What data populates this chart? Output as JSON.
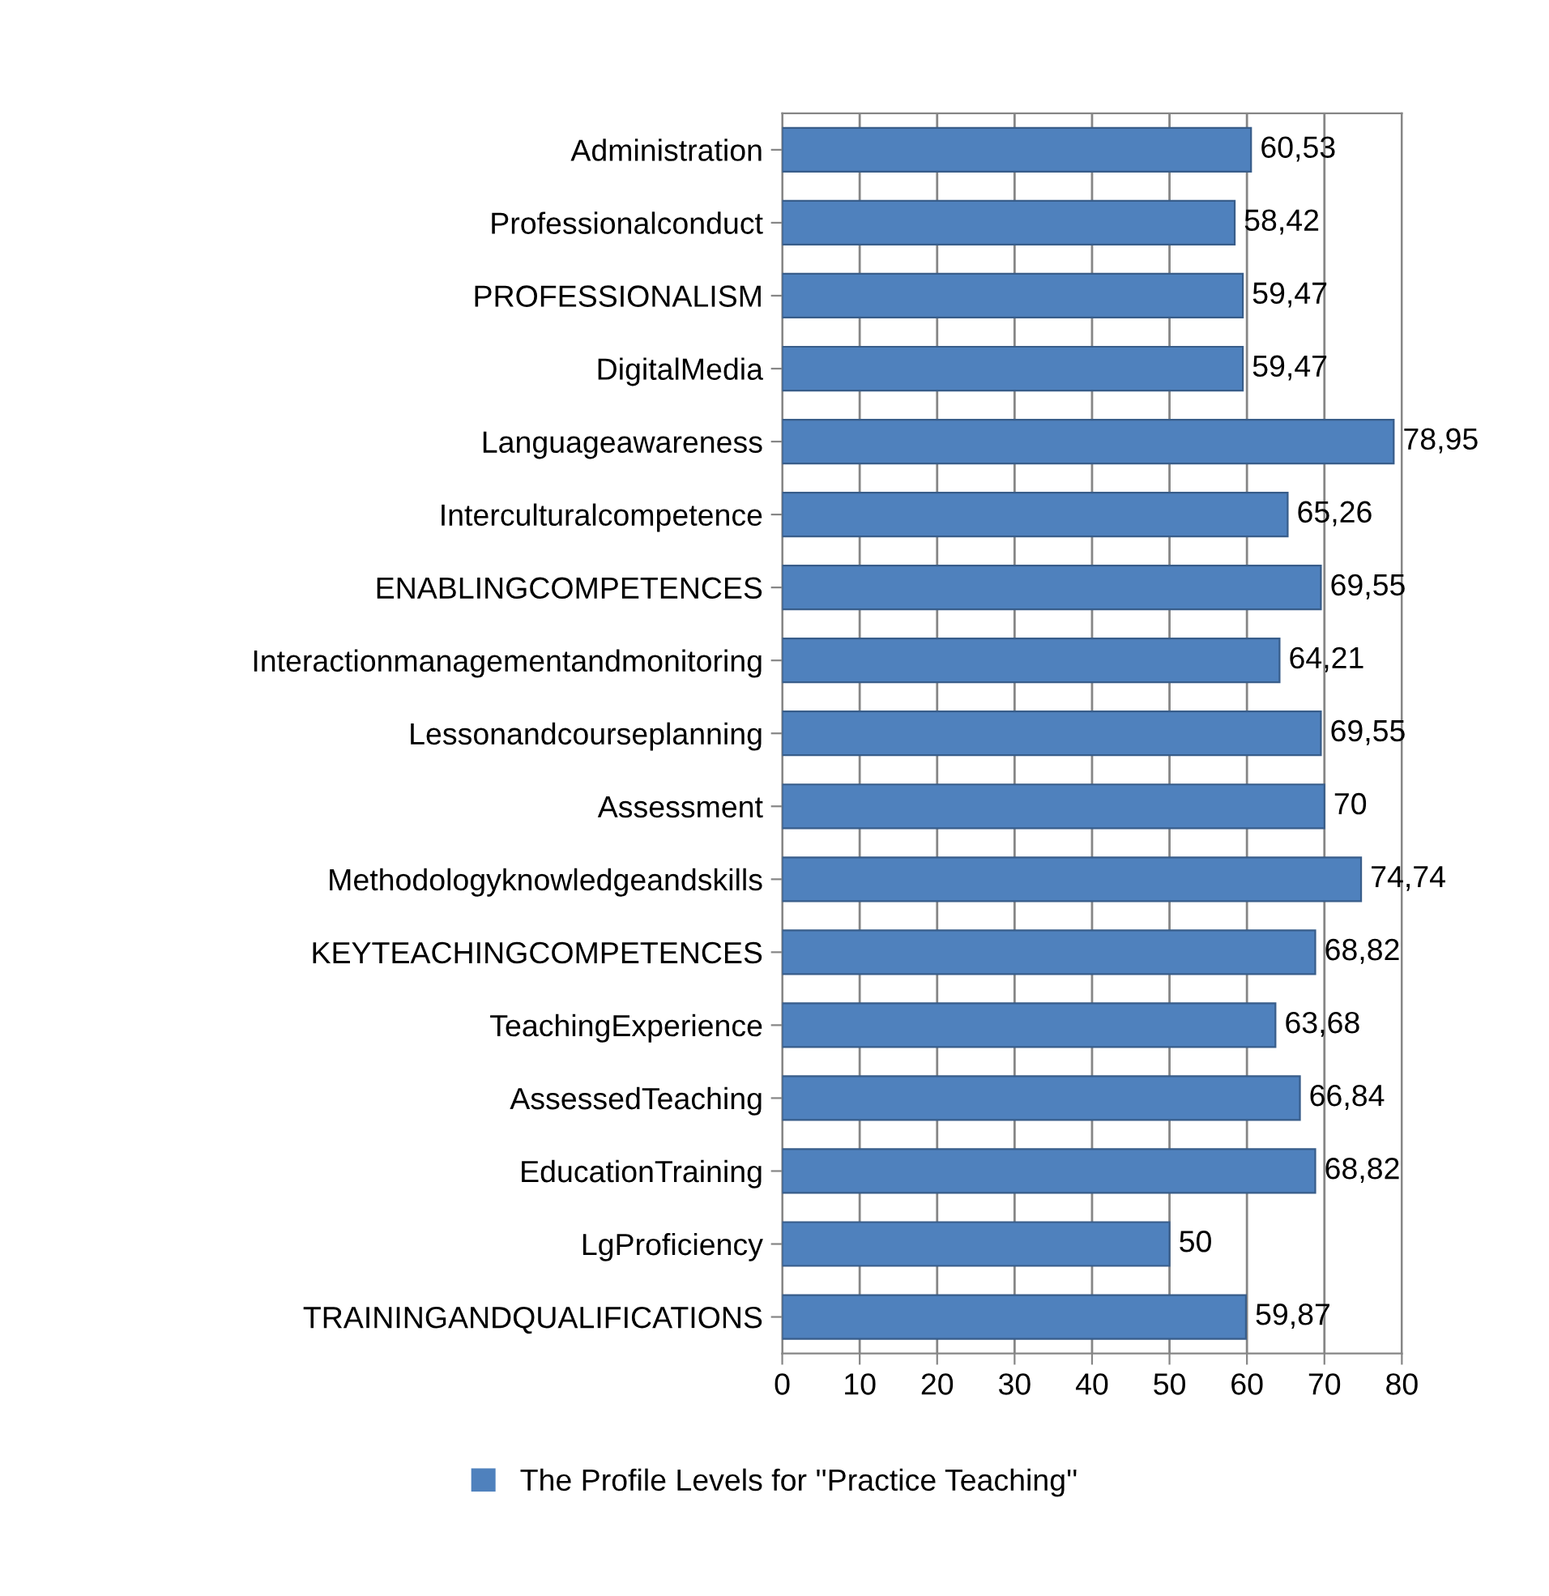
{
  "chart_data": {
    "type": "bar",
    "orientation": "horizontal",
    "categories": [
      "Administration",
      "Professionalconduct",
      "PROFESSIONALISM",
      "DigitalMedia",
      "Languageawareness",
      "Interculturalcompetence",
      "ENABLINGCOMPETENCES",
      "Interactionmanagementandmonitoring",
      "Lessonandcourseplanning",
      "Assessment",
      "Methodologyknowledgeandskills",
      "KEYTEACHINGCOMPETENCES",
      "TeachingExperience",
      "AssessedTeaching",
      "EducationTraining",
      "LgProficiency",
      "TRAININGANDQUALIFICATIONS"
    ],
    "series": [
      {
        "name": "The Profile Levels for ''Practice Teaching''",
        "color": "#4f81bd",
        "values": [
          60.53,
          58.42,
          59.47,
          59.47,
          78.95,
          65.26,
          69.55,
          64.21,
          69.55,
          70,
          74.74,
          68.82,
          63.68,
          66.84,
          68.82,
          50,
          59.87
        ],
        "value_labels": [
          "60,53",
          "58,42",
          "59,47",
          "59,47",
          "78,95",
          "65,26",
          "69,55",
          "64,21",
          "69,55",
          "70",
          "74,74",
          "68,82",
          "63,68",
          "66,84",
          "68,82",
          "50",
          "59,87"
        ]
      }
    ],
    "xlim": [
      0,
      80
    ],
    "xticks": [
      0,
      10,
      20,
      30,
      40,
      50,
      60,
      70,
      80
    ],
    "grid": "x",
    "legend": "bottom"
  }
}
